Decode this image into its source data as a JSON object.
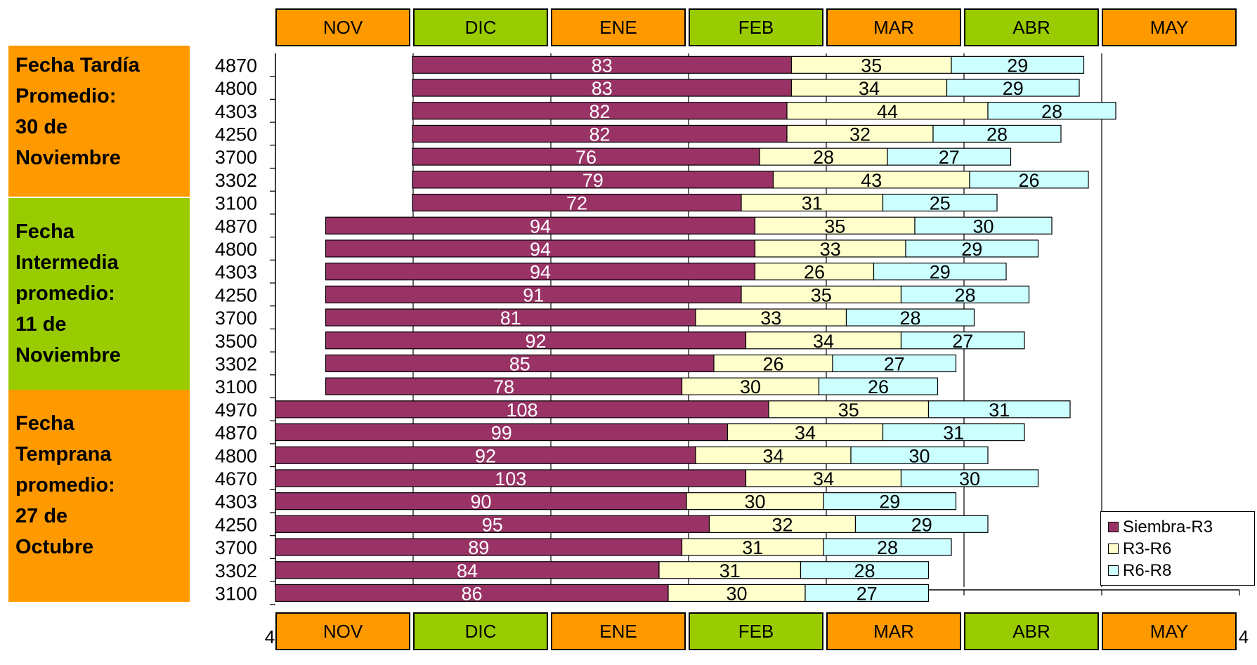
{
  "groups": [
    {
      "lines": [
        "Fecha Tardía",
        "Promedio:",
        "30 de",
        "Noviembre"
      ],
      "color": "#FF9900"
    },
    {
      "lines": [
        "Fecha",
        "Intermedia",
        "promedio:",
        "11 de",
        "Noviembre"
      ],
      "color": "#99CC00"
    },
    {
      "lines": [
        "Fecha",
        "Temprana",
        "promedio:",
        "27 de",
        "Octubre"
      ],
      "color": "#FF9900"
    }
  ],
  "months": [
    "NOV",
    "DIC",
    "ENE",
    "FEB",
    "MAR",
    "ABR",
    "MAY"
  ],
  "month_colors": [
    "#FF9900",
    "#99CC00",
    "#FF9900",
    "#99CC00",
    "#FF9900",
    "#99CC00",
    "#FF9900"
  ],
  "chart_data": {
    "type": "bar",
    "orientation": "horizontal",
    "stacked": true,
    "categories": [
      "4870",
      "4800",
      "4303",
      "4250",
      "3700",
      "3302",
      "3100",
      "4870",
      "4800",
      "4303",
      "4250",
      "3700",
      "3500",
      "3302",
      "3100",
      "4970",
      "4870",
      "4800",
      "4670",
      "4303",
      "4250",
      "3700",
      "3302",
      "3100"
    ],
    "offsets": [
      30,
      30,
      30,
      30,
      30,
      30,
      30,
      11,
      11,
      11,
      11,
      11,
      11,
      11,
      11,
      0,
      0,
      0,
      0,
      0,
      0,
      0,
      0,
      0
    ],
    "series": [
      {
        "name": "Siembra-R3",
        "color": "#993366",
        "values": [
          83,
          83,
          82,
          82,
          76,
          79,
          72,
          94,
          94,
          94,
          91,
          81,
          92,
          85,
          78,
          108,
          99,
          92,
          103,
          90,
          95,
          89,
          84,
          86
        ]
      },
      {
        "name": "R3-R6",
        "color": "#FFFFCC",
        "values": [
          35,
          34,
          44,
          32,
          28,
          43,
          31,
          35,
          33,
          26,
          35,
          33,
          34,
          26,
          30,
          35,
          34,
          34,
          34,
          30,
          32,
          31,
          31,
          30
        ]
      },
      {
        "name": "R6-R8",
        "color": "#CCFFFF",
        "values": [
          29,
          29,
          28,
          28,
          27,
          26,
          25,
          30,
          29,
          29,
          28,
          28,
          27,
          27,
          26,
          31,
          31,
          30,
          30,
          29,
          29,
          28,
          28,
          27
        ]
      }
    ],
    "xlim": [
      0,
      210
    ],
    "grid": true,
    "legend_position": "bottom-right",
    "axis_tick_label": "4"
  }
}
